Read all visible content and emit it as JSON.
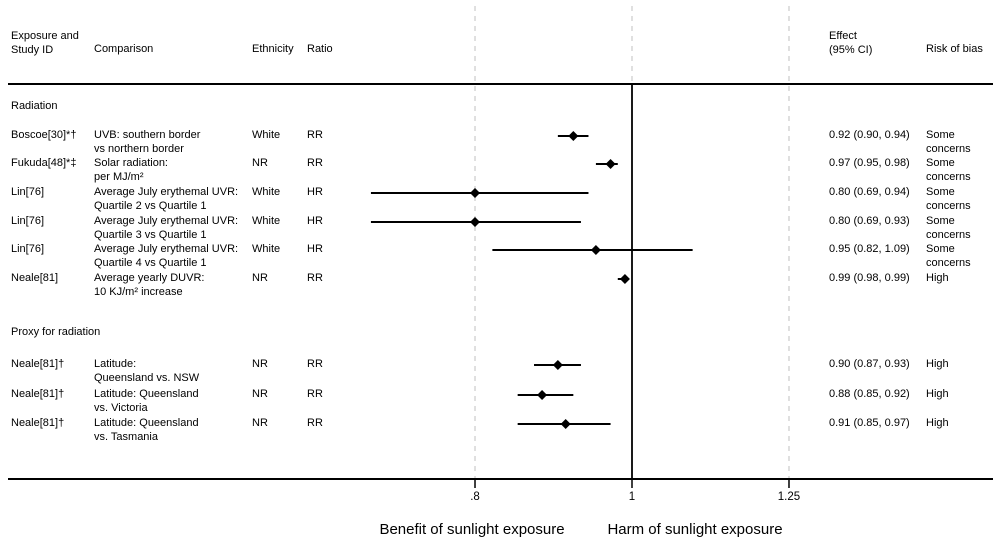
{
  "header": {
    "col_exposure_line1": "Exposure and",
    "col_exposure_line2": "Study ID",
    "col_comparison": "Comparison",
    "col_ethnicity": "Ethnicity",
    "col_ratio": "Ratio",
    "col_effect_line1": "Effect",
    "col_effect_line2": "(95% CI)",
    "col_bias": "Risk of bias"
  },
  "axis": {
    "tick_values": [
      0.8,
      1,
      1.25
    ],
    "tick_labels": [
      ".8",
      "1",
      "1.25"
    ],
    "reference_value": 1,
    "left_caption": "Benefit of sunlight exposure",
    "right_caption": "Harm of sunlight exposure"
  },
  "colors": {
    "text": "#000000",
    "marker": "#000000",
    "axis_line": "#000000",
    "gridline": "#dcdcdc",
    "background": "#ffffff"
  },
  "sections": [
    {
      "label": "Radiation",
      "rows": [
        {
          "study": "Boscoe[30]*†",
          "comparison_line1": "UVB: southern border",
          "comparison_line2": "vs northern border",
          "ethnicity": "White",
          "ratio": "RR",
          "effect": "0.92 (0.90, 0.94)",
          "bias": "Some concerns",
          "estimate": 0.92,
          "ci_low": 0.9,
          "ci_high": 0.94
        },
        {
          "study": "Fukuda[48]*‡",
          "comparison_line1": "Solar radiation:",
          "comparison_line2": "per MJ/m²",
          "ethnicity": "NR",
          "ratio": "RR",
          "effect": "0.97 (0.95, 0.98)",
          "bias": "Some concerns",
          "estimate": 0.97,
          "ci_low": 0.95,
          "ci_high": 0.98
        },
        {
          "study": "Lin[76]",
          "comparison_line1": "Average July erythemal UVR:",
          "comparison_line2": "Quartile 2 vs Quartile 1",
          "ethnicity": "White",
          "ratio": "HR",
          "effect": "0.80 (0.69, 0.94)",
          "bias": "Some concerns",
          "estimate": 0.8,
          "ci_low": 0.69,
          "ci_high": 0.94
        },
        {
          "study": "Lin[76]",
          "comparison_line1": "Average July erythemal UVR:",
          "comparison_line2": "Quartile 3 vs Quartile 1",
          "ethnicity": "White",
          "ratio": "HR",
          "effect": "0.80 (0.69, 0.93)",
          "bias": "Some concerns",
          "estimate": 0.8,
          "ci_low": 0.69,
          "ci_high": 0.93
        },
        {
          "study": "Lin[76]",
          "comparison_line1": "Average July erythemal UVR:",
          "comparison_line2": "Quartile 4 vs Quartile 1",
          "ethnicity": "White",
          "ratio": "HR",
          "effect": "0.95 (0.82, 1.09)",
          "bias": "Some concerns",
          "estimate": 0.95,
          "ci_low": 0.82,
          "ci_high": 1.09
        },
        {
          "study": "Neale[81]",
          "comparison_line1": "Average yearly DUVR:",
          "comparison_line2": "10 KJ/m² increase",
          "ethnicity": "NR",
          "ratio": "RR",
          "effect": "0.99 (0.98, 0.99)",
          "bias": "High",
          "estimate": 0.99,
          "ci_low": 0.98,
          "ci_high": 0.99
        }
      ]
    },
    {
      "label": "Proxy for radiation",
      "rows": [
        {
          "study": "Neale[81]†",
          "comparison_line1": "Latitude:",
          "comparison_line2": "Queensland vs. NSW",
          "ethnicity": "NR",
          "ratio": "RR",
          "effect": "0.90 (0.87, 0.93)",
          "bias": "High",
          "estimate": 0.9,
          "ci_low": 0.87,
          "ci_high": 0.93
        },
        {
          "study": "Neale[81]†",
          "comparison_line1": "Latitude: Queensland",
          "comparison_line2": "vs. Victoria",
          "ethnicity": "NR",
          "ratio": "RR",
          "effect": "0.88 (0.85, 0.92)",
          "bias": "High",
          "estimate": 0.88,
          "ci_low": 0.85,
          "ci_high": 0.92
        },
        {
          "study": "Neale[81]†",
          "comparison_line1": "Latitude: Queensland",
          "comparison_line2": "vs. Tasmania",
          "ethnicity": "NR",
          "ratio": "RR",
          "effect": "0.91 (0.85, 0.97)",
          "bias": "High",
          "estimate": 0.91,
          "ci_low": 0.85,
          "ci_high": 0.97
        }
      ]
    }
  ],
  "chart_data": {
    "type": "scatter",
    "subtype": "forest-plot",
    "title": "",
    "x_scale": "log",
    "x_ticks": [
      0.8,
      1,
      1.25
    ],
    "x_tick_labels": [
      ".8",
      "1",
      "1.25"
    ],
    "reference_line": 1,
    "xlabel_left": "Benefit of sunlight exposure",
    "xlabel_right": "Harm of sunlight exposure",
    "grid": "dashed-vertical-at-ticks",
    "marker": "black-diamond-with-horizontal-ci-line",
    "groups": [
      {
        "name": "Radiation",
        "points": [
          {
            "label": "Boscoe[30]*† UVB: southern border vs northern border",
            "estimate": 0.92,
            "ci": [
              0.9,
              0.94
            ]
          },
          {
            "label": "Fukuda[48]*‡ Solar radiation: per MJ/m²",
            "estimate": 0.97,
            "ci": [
              0.95,
              0.98
            ]
          },
          {
            "label": "Lin[76] Average July erythemal UVR: Quartile 2 vs Quartile 1",
            "estimate": 0.8,
            "ci": [
              0.69,
              0.94
            ]
          },
          {
            "label": "Lin[76] Average July erythemal UVR: Quartile 3 vs Quartile 1",
            "estimate": 0.8,
            "ci": [
              0.69,
              0.93
            ]
          },
          {
            "label": "Lin[76] Average July erythemal UVR: Quartile 4 vs Quartile 1",
            "estimate": 0.95,
            "ci": [
              0.82,
              1.09
            ]
          },
          {
            "label": "Neale[81] Average yearly DUVR: 10 KJ/m² increase",
            "estimate": 0.99,
            "ci": [
              0.98,
              0.99
            ]
          }
        ]
      },
      {
        "name": "Proxy for radiation",
        "points": [
          {
            "label": "Neale[81]† Latitude: Queensland vs. NSW",
            "estimate": 0.9,
            "ci": [
              0.87,
              0.93
            ]
          },
          {
            "label": "Neale[81]† Latitude: Queensland vs. Victoria",
            "estimate": 0.88,
            "ci": [
              0.85,
              0.92
            ]
          },
          {
            "label": "Neale[81]† Latitude: Queensland vs. Tasmania",
            "estimate": 0.91,
            "ci": [
              0.85,
              0.97
            ]
          }
        ]
      }
    ]
  }
}
